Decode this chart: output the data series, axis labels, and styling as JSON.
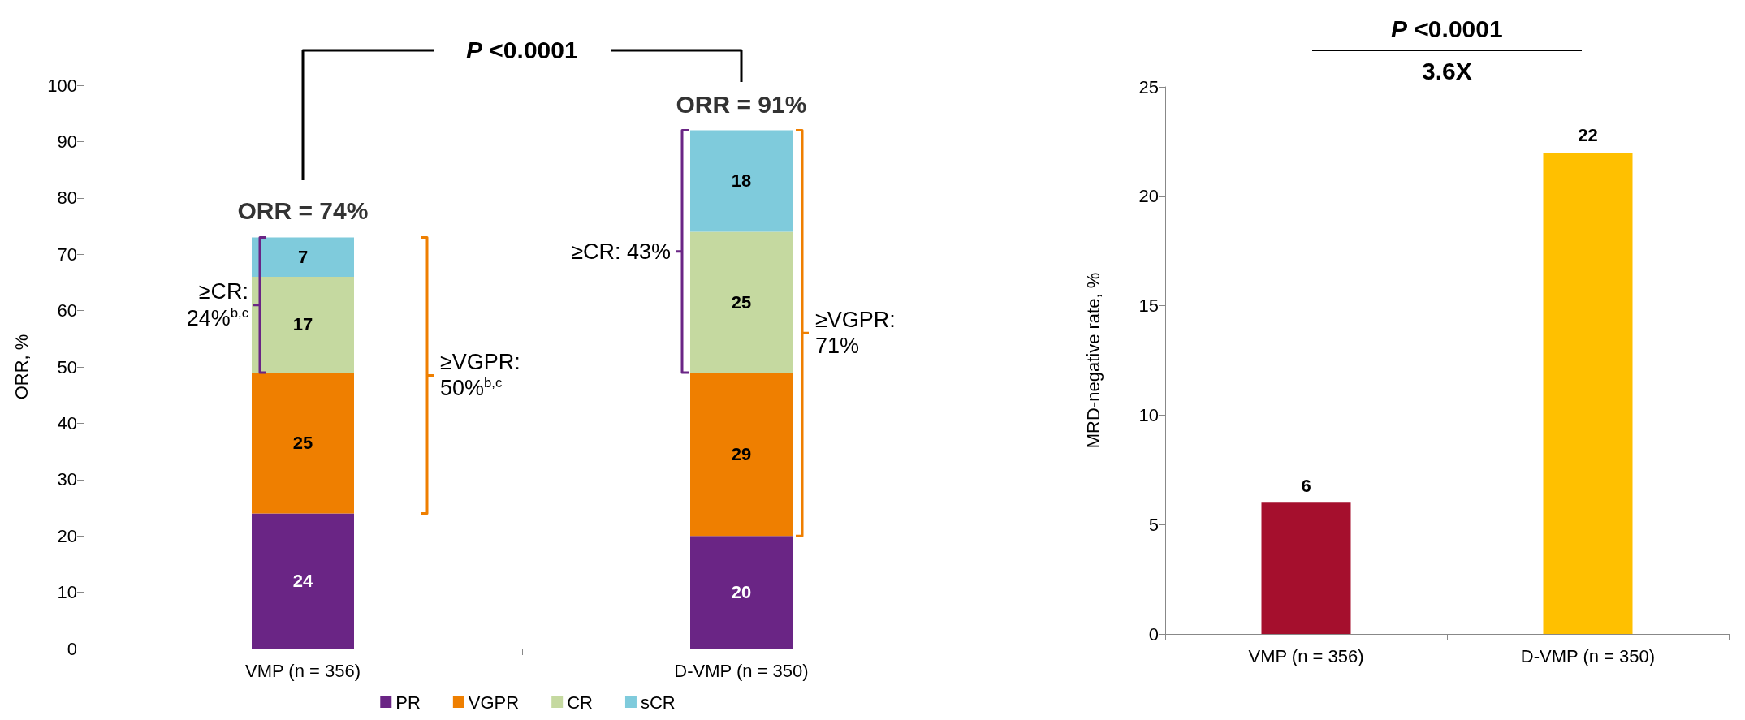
{
  "chart_data": [
    {
      "type": "bar",
      "categories": [
        "VMP (n = 356)",
        "D-VMP (n = 350)"
      ],
      "stacked": true,
      "series": [
        {
          "name": "PR",
          "color": "#6a2585",
          "values": [
            24,
            20
          ]
        },
        {
          "name": "VGPR",
          "color": "#ef7f00",
          "values": [
            25,
            29
          ]
        },
        {
          "name": "CR",
          "color": "#c5d9a0",
          "values": [
            17,
            25
          ]
        },
        {
          "name": "sCR",
          "color": "#7fcbdc",
          "values": [
            7,
            18
          ]
        }
      ],
      "ylabel": "ORR, %",
      "ylim": [
        0,
        100
      ],
      "yticks": [
        0,
        10,
        20,
        30,
        40,
        50,
        60,
        70,
        80,
        90,
        100
      ],
      "data_labels": true,
      "legend": "bottom",
      "annotations": [
        "P <0.0001",
        {
          "text": "ORR = 74%",
          "x": "VMP (n = 356)",
          "y": 73
        },
        {
          "text": "ORR = 91%",
          "x": "D-VMP (n = 350)",
          "y": 92
        },
        "≥CR: 24%$^{b,c}$",
        "≥VGPR: 50%$^{b,c}$",
        "≥CR: 43%",
        "≥VGPR: 71%"
      ]
    },
    {
      "type": "bar",
      "categories": [
        "VMP (n = 356)",
        "D-VMP (n = 350)"
      ],
      "values": [
        6,
        22
      ],
      "colors": [
        "#a50f2d",
        "#ffc000"
      ],
      "ylabel": "MRD-negative rate, %",
      "ylim": [
        0,
        25
      ],
      "yticks": [
        0,
        5,
        10,
        15,
        20,
        25
      ],
      "data_labels": true,
      "annotations": [
        "P <0.0001",
        "3.6X"
      ]
    }
  ]
}
